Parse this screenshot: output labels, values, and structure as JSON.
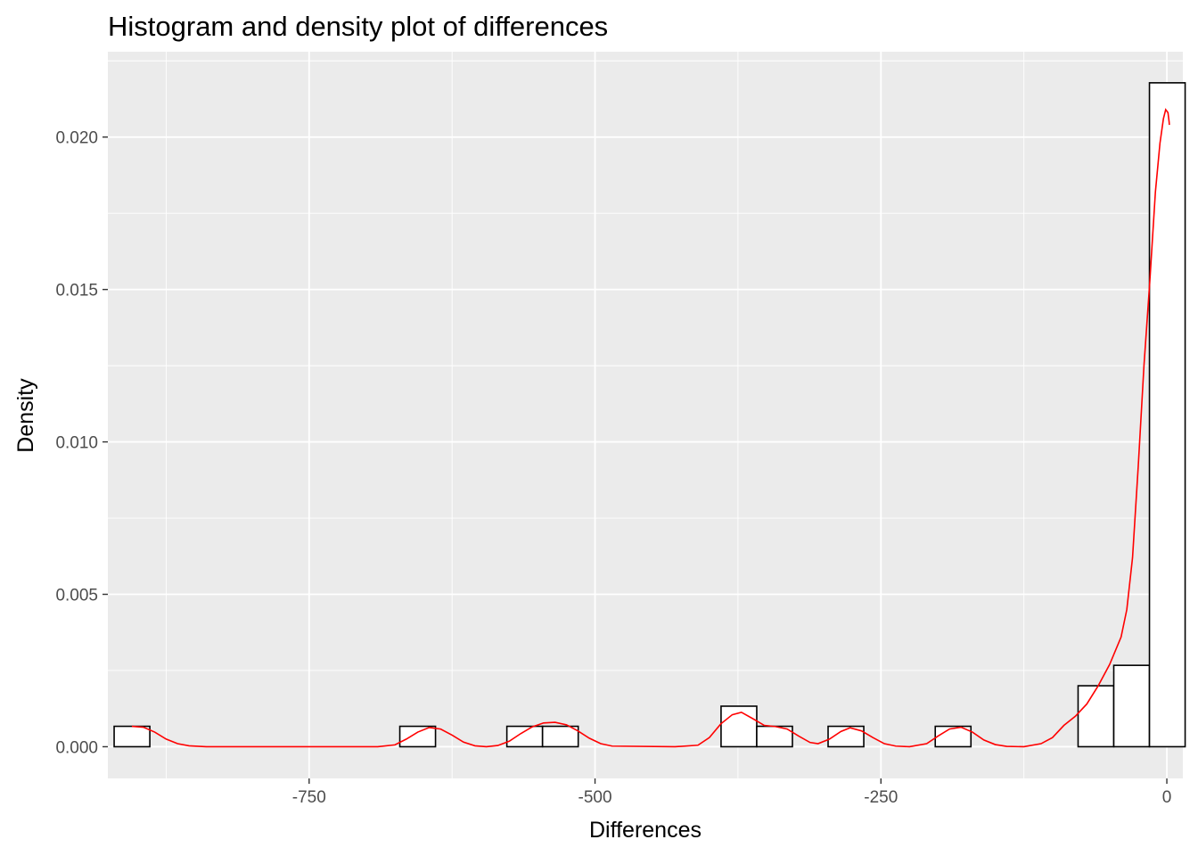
{
  "chart_data": {
    "type": "histogram",
    "title": "Histogram and density plot of differences",
    "xlabel": "Differences",
    "ylabel": "Density",
    "xlim": [
      -926,
      14
    ],
    "ylim": [
      -0.00104,
      0.0228
    ],
    "x_ticks": [
      -750,
      -500,
      -250,
      0
    ],
    "x_tick_labels": [
      "-750",
      "-500",
      "-250",
      "0"
    ],
    "y_ticks": [
      0.0,
      0.005,
      0.01,
      0.015,
      0.02
    ],
    "y_tick_labels": [
      "0.000",
      "0.005",
      "0.010",
      "0.015",
      "0.020"
    ],
    "grid": true,
    "histogram": {
      "bin_width": 31.2,
      "bins": [
        {
          "x0": -920.5,
          "x1": -889.3,
          "density": 0.00067
        },
        {
          "x0": -670.7,
          "x1": -639.5,
          "density": 0.00067
        },
        {
          "x0": -577.1,
          "x1": -545.9,
          "density": 0.00067
        },
        {
          "x0": -545.9,
          "x1": -514.7,
          "density": 0.00067
        },
        {
          "x0": -389.8,
          "x1": -358.6,
          "density": 0.00133
        },
        {
          "x0": -358.6,
          "x1": -327.4,
          "density": 0.00067
        },
        {
          "x0": -296.2,
          "x1": -265.0,
          "density": 0.00067
        },
        {
          "x0": -202.5,
          "x1": -171.3,
          "density": 0.00067
        },
        {
          "x0": -77.6,
          "x1": -46.4,
          "density": 0.002
        },
        {
          "x0": -46.4,
          "x1": -15.2,
          "density": 0.00267
        },
        {
          "x0": -15.2,
          "x1": 16.0,
          "density": 0.02178
        }
      ]
    },
    "density": {
      "name": "density",
      "color": "#ff0000",
      "points": [
        [
          -905,
          0.00067
        ],
        [
          -895,
          0.00064
        ],
        [
          -885,
          0.00048
        ],
        [
          -875,
          0.00025
        ],
        [
          -865,
          0.0001
        ],
        [
          -855,
          3e-05
        ],
        [
          -840,
          0.0
        ],
        [
          -690,
          0.0
        ],
        [
          -675,
          6e-05
        ],
        [
          -665,
          0.00025
        ],
        [
          -655,
          0.00048
        ],
        [
          -645,
          0.00063
        ],
        [
          -635,
          0.00058
        ],
        [
          -625,
          0.00038
        ],
        [
          -615,
          0.00015
        ],
        [
          -605,
          3e-05
        ],
        [
          -595,
          0.0
        ],
        [
          -585,
          4e-05
        ],
        [
          -575,
          0.00018
        ],
        [
          -565,
          0.00043
        ],
        [
          -555,
          0.00065
        ],
        [
          -545,
          0.00078
        ],
        [
          -535,
          0.0008
        ],
        [
          -525,
          0.00072
        ],
        [
          -515,
          0.00052
        ],
        [
          -505,
          0.00028
        ],
        [
          -495,
          0.0001
        ],
        [
          -485,
          2e-05
        ],
        [
          -430,
          0.0
        ],
        [
          -410,
          5e-05
        ],
        [
          -400,
          0.0003
        ],
        [
          -390,
          0.00075
        ],
        [
          -380,
          0.00105
        ],
        [
          -372,
          0.00113
        ],
        [
          -362,
          0.00092
        ],
        [
          -352,
          0.0007
        ],
        [
          -342,
          0.00066
        ],
        [
          -332,
          0.00058
        ],
        [
          -322,
          0.00035
        ],
        [
          -312,
          0.00014
        ],
        [
          -305,
          0.0001
        ],
        [
          -295,
          0.00025
        ],
        [
          -285,
          0.0005
        ],
        [
          -277,
          0.00062
        ],
        [
          -267,
          0.00052
        ],
        [
          -257,
          0.0003
        ],
        [
          -247,
          0.0001
        ],
        [
          -237,
          2e-05
        ],
        [
          -225,
          0.0
        ],
        [
          -210,
          0.0001
        ],
        [
          -200,
          0.00035
        ],
        [
          -190,
          0.00058
        ],
        [
          -180,
          0.00064
        ],
        [
          -170,
          0.00048
        ],
        [
          -160,
          0.00022
        ],
        [
          -150,
          7e-05
        ],
        [
          -140,
          1e-05
        ],
        [
          -125,
          0.0
        ],
        [
          -110,
          0.0001
        ],
        [
          -100,
          0.0003
        ],
        [
          -90,
          0.0007
        ],
        [
          -80,
          0.001
        ],
        [
          -70,
          0.0014
        ],
        [
          -60,
          0.002
        ],
        [
          -50,
          0.0027
        ],
        [
          -40,
          0.0036
        ],
        [
          -35,
          0.0045
        ],
        [
          -30,
          0.0062
        ],
        [
          -25,
          0.0092
        ],
        [
          -20,
          0.0125
        ],
        [
          -15,
          0.0152
        ],
        [
          -10,
          0.0182
        ],
        [
          -6,
          0.0198
        ],
        [
          -3,
          0.0206
        ],
        [
          -1,
          0.0209
        ],
        [
          1,
          0.0208
        ],
        [
          2,
          0.0205
        ],
        [
          2.2,
          0.0204
        ]
      ]
    }
  }
}
